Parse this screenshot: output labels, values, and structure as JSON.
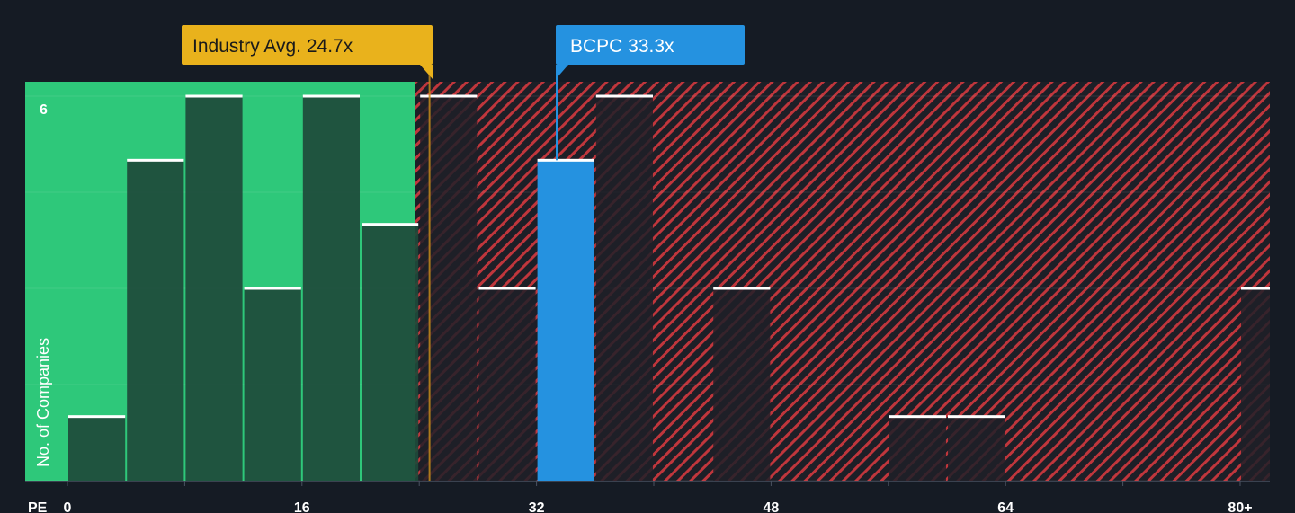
{
  "chart_data": {
    "type": "bar",
    "xlabel": "PE",
    "ylabel": "No. of Companies",
    "x_ticks": [
      "0",
      "16",
      "32",
      "48",
      "64",
      "80+"
    ],
    "y_ticks": [
      "6"
    ],
    "ylim": [
      0,
      6.2
    ],
    "bin_width": 4,
    "bins": [
      {
        "start": 0,
        "value": 1
      },
      {
        "start": 4,
        "value": 5
      },
      {
        "start": 8,
        "value": 6
      },
      {
        "start": 12,
        "value": 3
      },
      {
        "start": 16,
        "value": 6
      },
      {
        "start": 20,
        "value": 4
      },
      {
        "start": 24,
        "value": 6
      },
      {
        "start": 28,
        "value": 3
      },
      {
        "start": 32,
        "value": 5
      },
      {
        "start": 36,
        "value": 6
      },
      {
        "start": 40,
        "value": 0
      },
      {
        "start": 44,
        "value": 3
      },
      {
        "start": 48,
        "value": 0
      },
      {
        "start": 52,
        "value": 0
      },
      {
        "start": 56,
        "value": 1
      },
      {
        "start": 60,
        "value": 1
      },
      {
        "start": 64,
        "value": 0
      },
      {
        "start": 68,
        "value": 0
      },
      {
        "start": 72,
        "value": 0
      },
      {
        "start": 76,
        "value": 0
      },
      {
        "start": 80,
        "value": 3
      }
    ],
    "industry_avg": {
      "label": "Industry Avg. 24.7x",
      "value": 24.7
    },
    "company": {
      "label": "BCPC 33.3x",
      "value": 33.3
    },
    "colors": {
      "background": "#151b24",
      "fair_zone": "#2ec87a",
      "fair_bar": "#1e4a3a",
      "over_zone_stripe": "#c0363c",
      "over_bar": "#1f2028",
      "company_bar": "#2592e0",
      "industry_flag": "#e9b21c",
      "company_flag": "#2592e0",
      "bar_cap": "#ffffff",
      "axis_text": "#ffffff"
    },
    "grid": true
  }
}
